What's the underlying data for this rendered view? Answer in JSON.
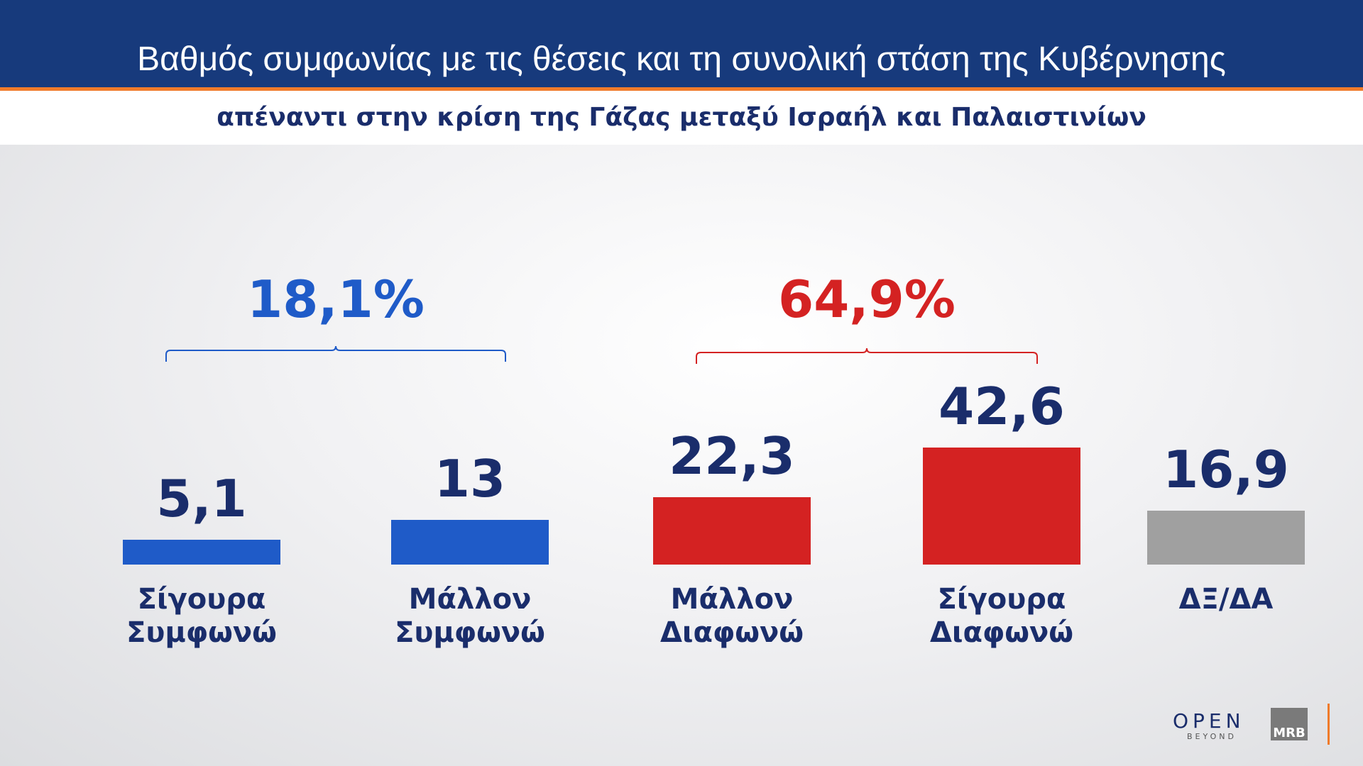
{
  "chart_data": {
    "type": "bar",
    "title": "Βαθμός συμφωνίας με τις θέσεις και τη συνολική στάση της Κυβέρνησης",
    "subtitle": "απέναντι στην κρίση της Γάζας μεταξύ Ισραήλ και Παλαιστινίων",
    "categories": [
      "Σίγουρα Συμφωνώ",
      "Μάλλον Συμφωνώ",
      "Μάλλον Διαφωνώ",
      "Σίγουρα Διαφωνώ",
      "ΔΞ/ΔΑ"
    ],
    "values": [
      5.1,
      13,
      22.3,
      42.6,
      16.9
    ],
    "value_labels": [
      "5,1",
      "13",
      "22,3",
      "42,6",
      "16,9"
    ],
    "colors": [
      "#1f5bc8",
      "#1f5bc8",
      "#d42222",
      "#d42222",
      "#a0a0a0"
    ],
    "ylim": [
      -5,
      50
    ],
    "groups": [
      {
        "label": "18,1%",
        "value": 18.1,
        "members": [
          0,
          1
        ],
        "color": "#1f5bc8"
      },
      {
        "label": "64,9%",
        "value": 64.9,
        "members": [
          2,
          3
        ],
        "color": "#d42222"
      }
    ]
  },
  "logos": {
    "open": "OPEN",
    "beyond": "BEYOND",
    "mrb": "MRB"
  }
}
